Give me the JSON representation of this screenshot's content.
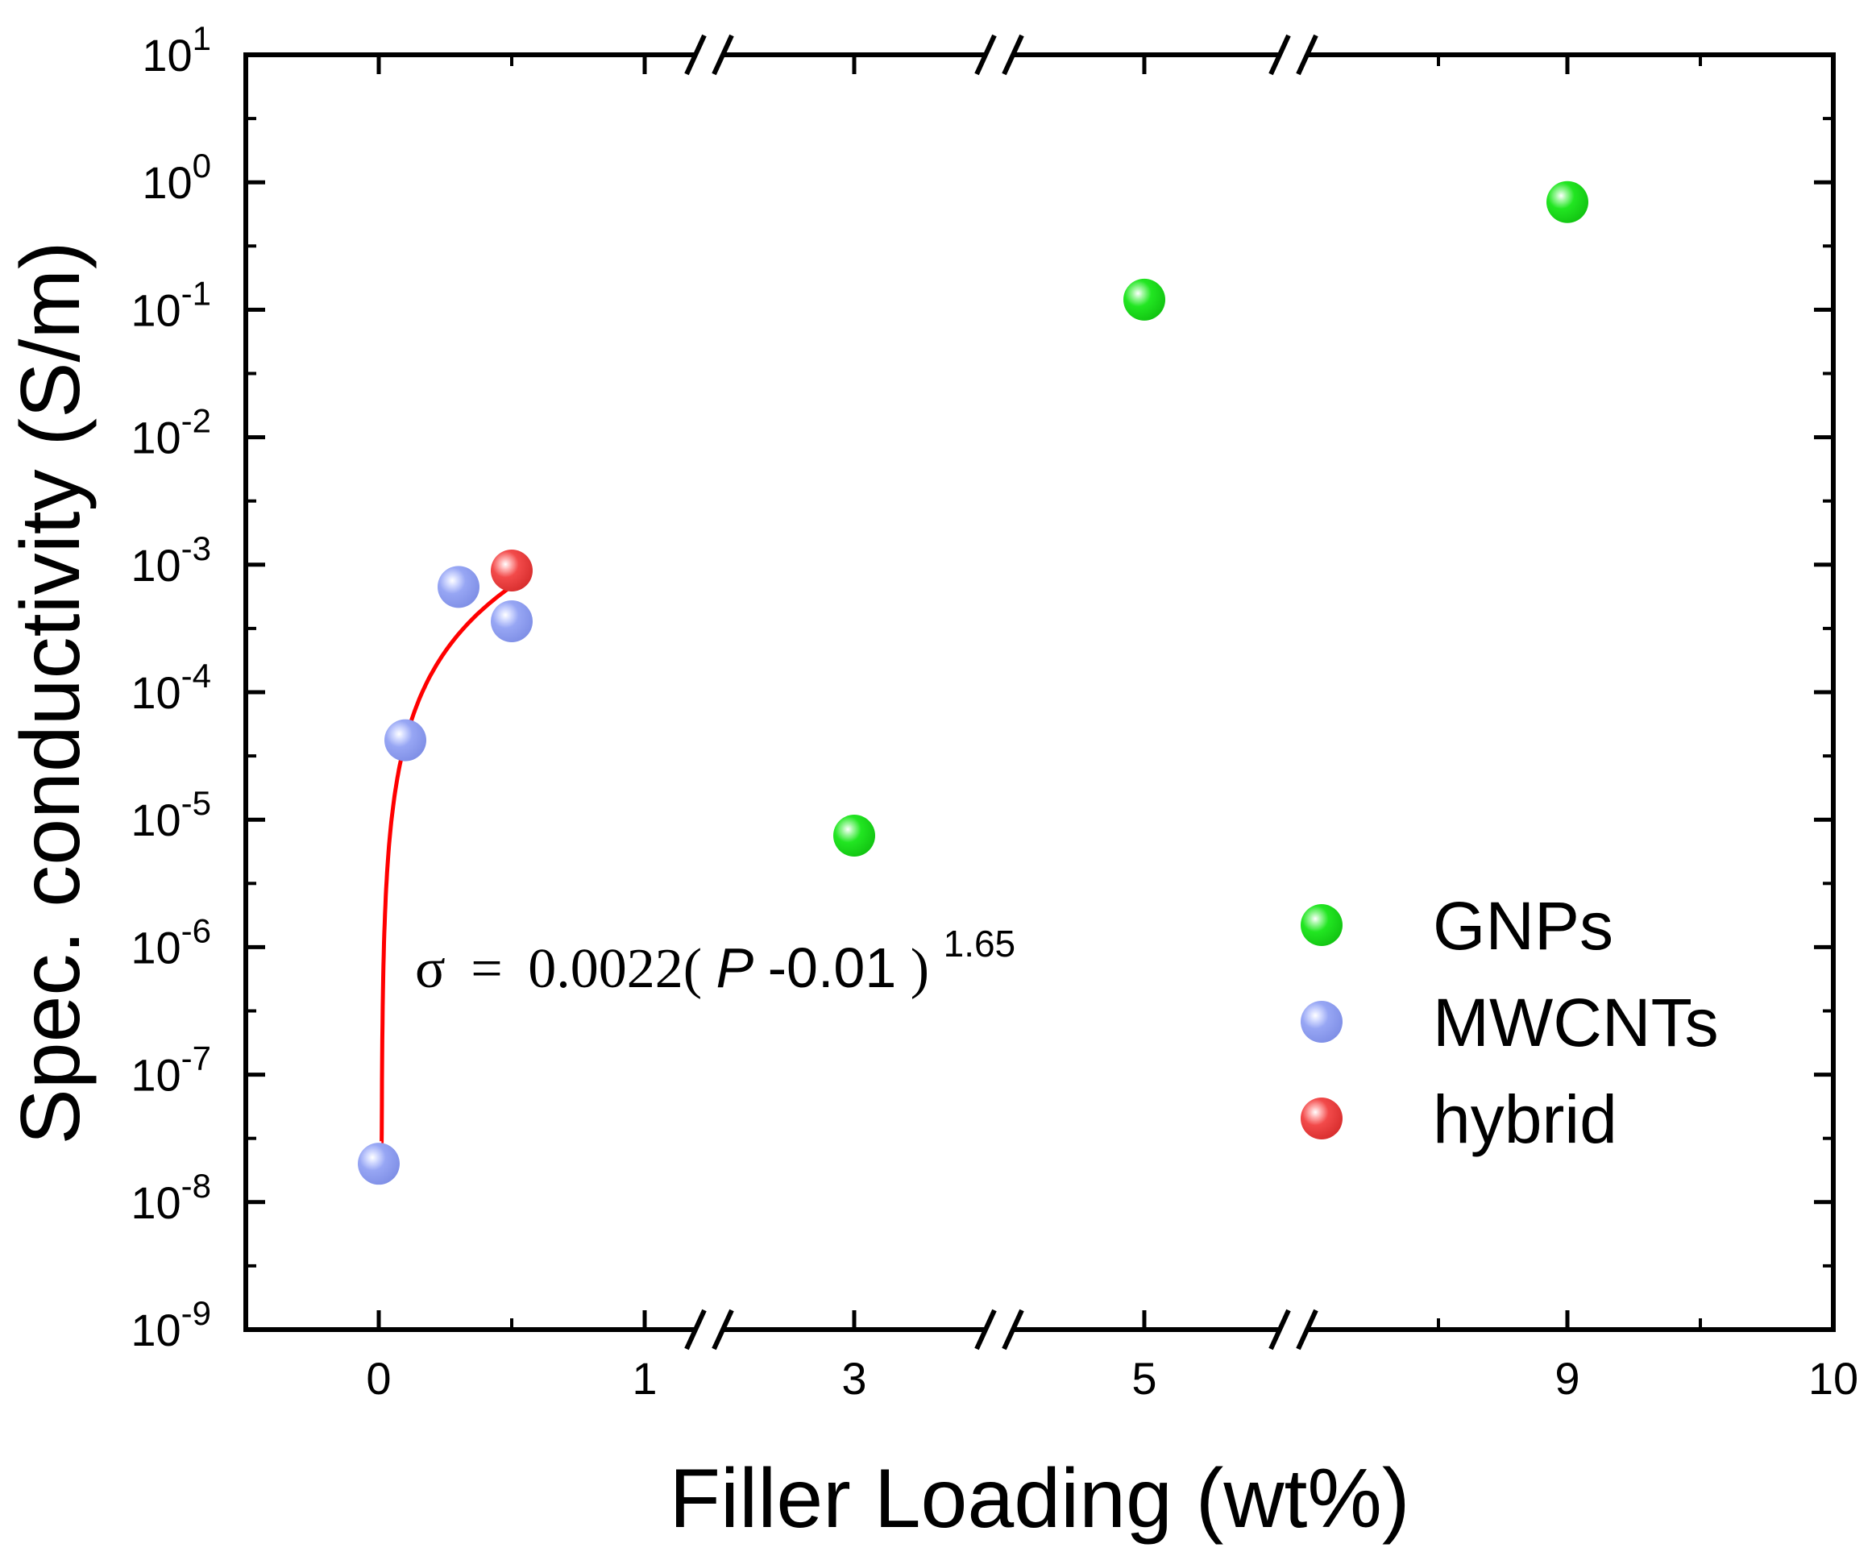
{
  "chart_data": {
    "type": "scatter",
    "title": "",
    "xlabel": "Filler Loading (wt%)",
    "ylabel": "Spec. conductivity (S/m)",
    "yscale": "log",
    "ylim": [
      1e-09,
      10
    ],
    "x_tick_labels": [
      "0",
      "1",
      "3",
      "5",
      "9",
      "10"
    ],
    "x_axis_breaks": [
      "between 1 and 3",
      "between 3 and 5",
      "between 5 and 9"
    ],
    "y_ticks": [
      {
        "base": "10",
        "exp": "1",
        "value": 10
      },
      {
        "base": "10",
        "exp": "0",
        "value": 1
      },
      {
        "base": "10",
        "exp": "-1",
        "value": 0.1
      },
      {
        "base": "10",
        "exp": "-2",
        "value": 0.01
      },
      {
        "base": "10",
        "exp": "-3",
        "value": 0.001
      },
      {
        "base": "10",
        "exp": "-4",
        "value": 0.0001
      },
      {
        "base": "10",
        "exp": "-5",
        "value": 1e-05
      },
      {
        "base": "10",
        "exp": "-6",
        "value": 1e-06
      },
      {
        "base": "10",
        "exp": "-7",
        "value": 1e-07
      },
      {
        "base": "10",
        "exp": "-8",
        "value": 1e-08
      },
      {
        "base": "10",
        "exp": "-9",
        "value": 1e-09
      }
    ],
    "series": [
      {
        "name": "GNPs",
        "color": "#1ee51e",
        "points": [
          {
            "x": 3,
            "y": 7.5e-06
          },
          {
            "x": 5,
            "y": 0.12
          },
          {
            "x": 9,
            "y": 0.7
          }
        ]
      },
      {
        "name": "MWCNTs",
        "color": "#8c9cf0",
        "points": [
          {
            "x": 0.0,
            "y": 2e-08
          },
          {
            "x": 0.1,
            "y": 4.2e-05
          },
          {
            "x": 0.3,
            "y": 0.00067
          },
          {
            "x": 0.5,
            "y": 0.00036
          }
        ]
      },
      {
        "name": "hybrid",
        "color": "#f03c3c",
        "points": [
          {
            "x": 0.5,
            "y": 0.0009
          }
        ]
      }
    ],
    "fit": {
      "color": "#ff0000",
      "prefactor": 0.0022,
      "threshold": 0.01,
      "exponent": 1.65,
      "x_start": 0.01,
      "x_end": 0.5,
      "y_start": 3e-08,
      "label_sigma": "σ",
      "label_equals": "=",
      "label_coef": "0.0022(",
      "label_var": "P",
      "label_mid": "-0.01",
      "label_close": ")",
      "label_exp": "1.65"
    },
    "legend": {
      "position": "right",
      "entries": [
        "GNPs",
        "MWCNTs",
        "hybrid"
      ]
    }
  }
}
